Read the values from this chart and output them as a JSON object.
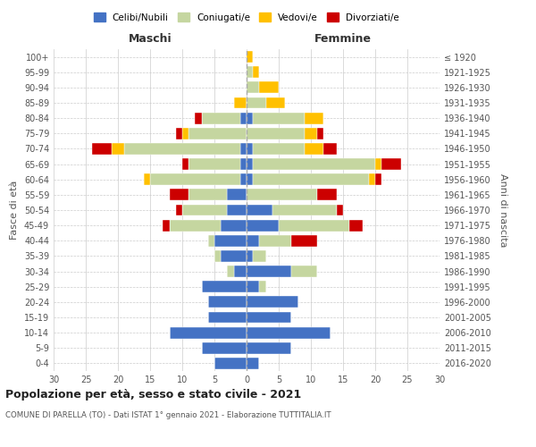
{
  "age_groups": [
    "0-4",
    "5-9",
    "10-14",
    "15-19",
    "20-24",
    "25-29",
    "30-34",
    "35-39",
    "40-44",
    "45-49",
    "50-54",
    "55-59",
    "60-64",
    "65-69",
    "70-74",
    "75-79",
    "80-84",
    "85-89",
    "90-94",
    "95-99",
    "100+"
  ],
  "birth_years": [
    "2016-2020",
    "2011-2015",
    "2006-2010",
    "2001-2005",
    "1996-2000",
    "1991-1995",
    "1986-1990",
    "1981-1985",
    "1976-1980",
    "1971-1975",
    "1966-1970",
    "1961-1965",
    "1956-1960",
    "1951-1955",
    "1946-1950",
    "1941-1945",
    "1936-1940",
    "1931-1935",
    "1926-1930",
    "1921-1925",
    "≤ 1920"
  ],
  "colors": {
    "celibi": "#4472c4",
    "coniugati": "#c5d6a0",
    "vedovi": "#ffc000",
    "divorziati": "#cc0000"
  },
  "maschi": {
    "celibi": [
      5,
      7,
      12,
      6,
      6,
      7,
      2,
      4,
      5,
      4,
      3,
      3,
      1,
      1,
      1,
      0,
      1,
      0,
      0,
      0,
      0
    ],
    "coniugati": [
      0,
      0,
      0,
      0,
      0,
      0,
      1,
      1,
      1,
      8,
      7,
      6,
      14,
      8,
      18,
      9,
      6,
      0,
      0,
      0,
      0
    ],
    "vedovi": [
      0,
      0,
      0,
      0,
      0,
      0,
      0,
      0,
      0,
      0,
      0,
      0,
      1,
      0,
      2,
      1,
      0,
      2,
      0,
      0,
      0
    ],
    "divorziati": [
      0,
      0,
      0,
      0,
      0,
      0,
      0,
      0,
      0,
      1,
      1,
      3,
      0,
      1,
      3,
      1,
      1,
      0,
      0,
      0,
      0
    ]
  },
  "femmine": {
    "celibi": [
      2,
      7,
      13,
      7,
      8,
      2,
      7,
      1,
      2,
      5,
      4,
      0,
      1,
      1,
      1,
      0,
      1,
      0,
      0,
      0,
      0
    ],
    "coniugati": [
      0,
      0,
      0,
      0,
      0,
      1,
      4,
      2,
      5,
      11,
      10,
      11,
      18,
      19,
      8,
      9,
      8,
      3,
      2,
      1,
      0
    ],
    "vedovi": [
      0,
      0,
      0,
      0,
      0,
      0,
      0,
      0,
      0,
      0,
      0,
      0,
      1,
      1,
      3,
      2,
      3,
      3,
      3,
      1,
      1
    ],
    "divorziati": [
      0,
      0,
      0,
      0,
      0,
      0,
      0,
      0,
      4,
      2,
      1,
      3,
      1,
      3,
      2,
      1,
      0,
      0,
      0,
      0,
      0
    ]
  },
  "xlim": 30,
  "title": "Popolazione per età, sesso e stato civile - 2021",
  "subtitle": "COMUNE DI PARELLA (TO) - Dati ISTAT 1° gennaio 2021 - Elaborazione TUTTITALIA.IT",
  "xlabel_left": "Maschi",
  "xlabel_right": "Femmine",
  "ylabel_left": "Fasce di età",
  "ylabel_right": "Anni di nascita",
  "legend_labels": [
    "Celibi/Nubili",
    "Coniugati/e",
    "Vedovi/e",
    "Divorziati/e"
  ],
  "bg_color": "#ffffff",
  "grid_color": "#cccccc"
}
